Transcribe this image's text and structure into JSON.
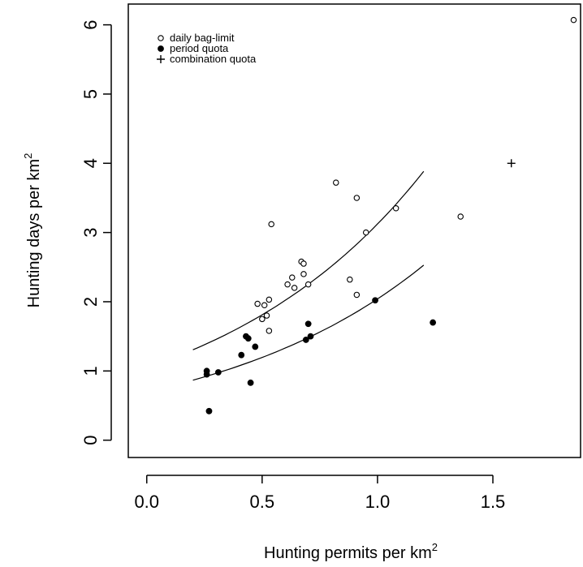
{
  "chart_data": {
    "type": "scatter",
    "xlabel": "Hunting permits per km",
    "ylabel": "Hunting days per  km",
    "xlabel_superscript": "2",
    "ylabel_superscript": "2",
    "xlim": [
      -0.08,
      1.88
    ],
    "ylim": [
      -0.25,
      6.3
    ],
    "xticks": [
      "0.0",
      "0.5",
      "1.0",
      "1.5"
    ],
    "xtick_values": [
      0,
      0.5,
      1,
      1.5
    ],
    "yticks": [
      "0",
      "1",
      "2",
      "3",
      "4",
      "5",
      "6"
    ],
    "ytick_values": [
      0,
      1,
      2,
      3,
      4,
      5,
      6
    ],
    "grid": false,
    "legend_position": "top-left",
    "series": [
      {
        "name": "daily bag-limit",
        "marker": "open-circle",
        "points": [
          [
            0.48,
            1.97
          ],
          [
            0.5,
            1.75
          ],
          [
            0.51,
            1.95
          ],
          [
            0.52,
            1.8
          ],
          [
            0.53,
            2.03
          ],
          [
            0.53,
            1.58
          ],
          [
            0.54,
            3.12
          ],
          [
            0.61,
            2.25
          ],
          [
            0.63,
            2.35
          ],
          [
            0.64,
            2.2
          ],
          [
            0.67,
            2.58
          ],
          [
            0.68,
            2.55
          ],
          [
            0.68,
            2.4
          ],
          [
            0.7,
            2.25
          ],
          [
            0.82,
            3.72
          ],
          [
            0.88,
            2.32
          ],
          [
            0.91,
            3.5
          ],
          [
            0.91,
            2.1
          ],
          [
            0.95,
            3.0
          ],
          [
            1.08,
            3.35
          ],
          [
            1.36,
            3.23
          ],
          [
            1.85,
            6.07
          ]
        ]
      },
      {
        "name": "period quota",
        "marker": "filled-circle",
        "points": [
          [
            0.26,
            1.0
          ],
          [
            0.26,
            0.95
          ],
          [
            0.27,
            0.42
          ],
          [
            0.31,
            0.98
          ],
          [
            0.41,
            1.23
          ],
          [
            0.43,
            1.5
          ],
          [
            0.44,
            1.47
          ],
          [
            0.45,
            0.83
          ],
          [
            0.47,
            1.35
          ],
          [
            0.69,
            1.45
          ],
          [
            0.7,
            1.68
          ],
          [
            0.71,
            1.5
          ],
          [
            0.99,
            2.02
          ],
          [
            1.24,
            1.7
          ]
        ]
      },
      {
        "name": "combination quota",
        "marker": "plus",
        "points": [
          [
            1.58,
            4.0
          ]
        ]
      }
    ],
    "fitted_curves": [
      {
        "name": "daily bag-limit fit",
        "x_range": [
          0.2,
          1.2
        ],
        "model": "exponential",
        "a": 1.05,
        "b": 1.09
      },
      {
        "name": "period quota fit",
        "x_range": [
          0.2,
          1.2
        ],
        "model": "exponential",
        "a": 0.7,
        "b": 1.07
      }
    ]
  }
}
